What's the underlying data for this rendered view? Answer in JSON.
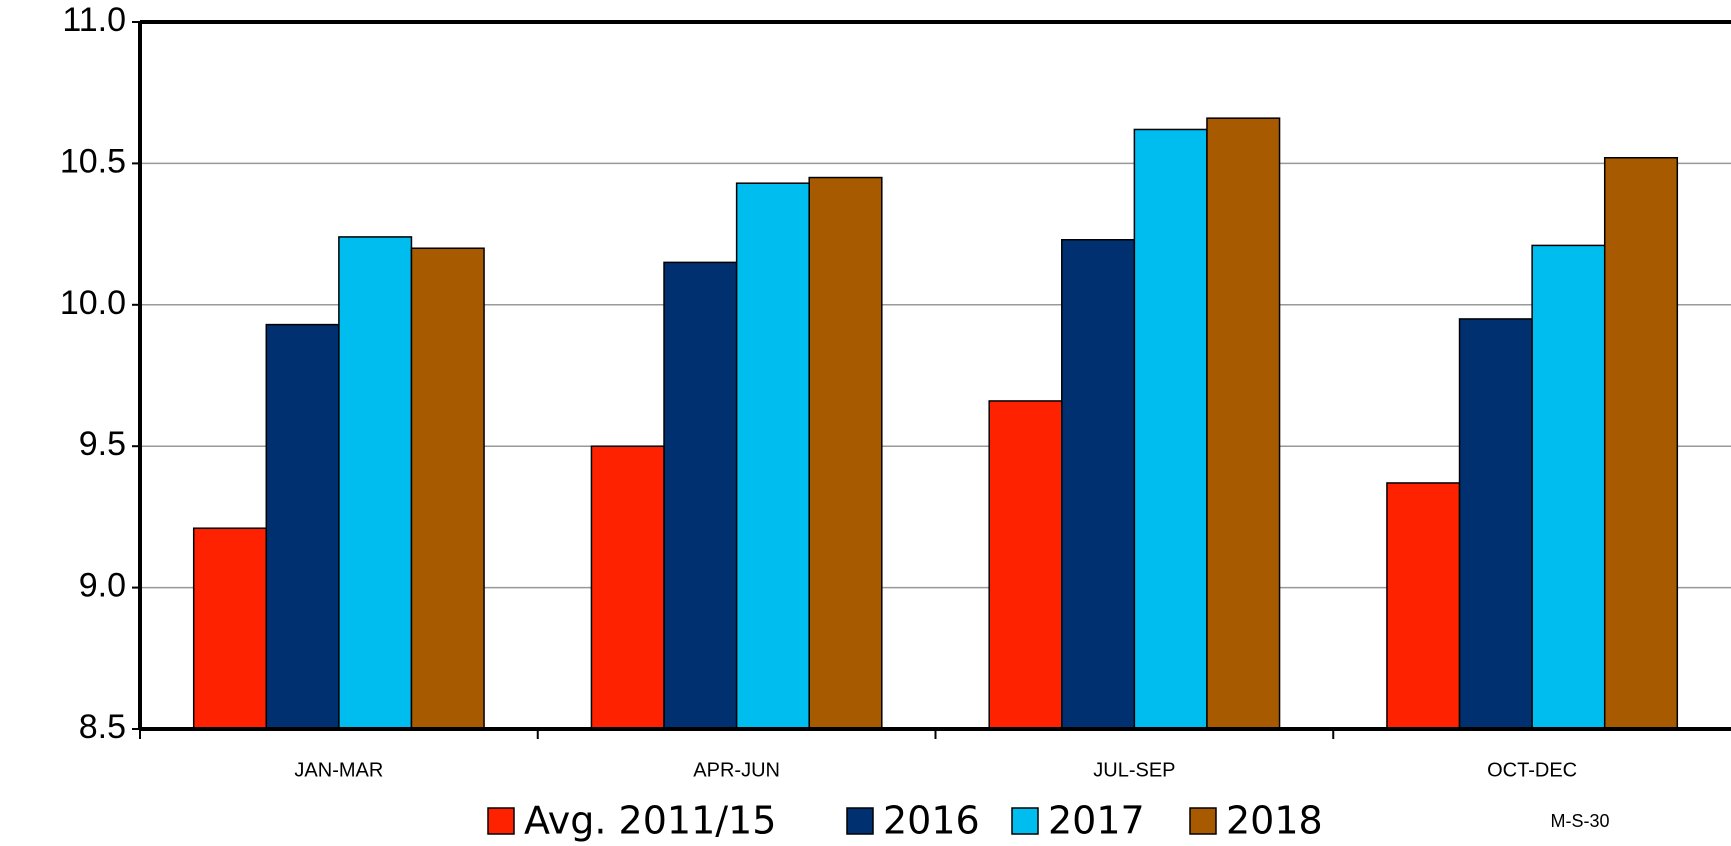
{
  "chart_data": {
    "type": "bar",
    "categories": [
      "JAN-MAR",
      "APR-JUN",
      "JUL-SEP",
      "OCT-DEC"
    ],
    "series": [
      {
        "name": "Avg. 2011/15",
        "color": "#ff2200",
        "values": [
          9.21,
          9.5,
          9.66,
          9.37
        ]
      },
      {
        "name": "2016",
        "color": "#003070",
        "values": [
          9.93,
          10.15,
          10.23,
          9.95
        ]
      },
      {
        "name": "2017",
        "color": "#00bdf0",
        "values": [
          10.24,
          10.43,
          10.62,
          10.21
        ]
      },
      {
        "name": "2018",
        "color": "#a85a00",
        "values": [
          10.2,
          10.45,
          10.66,
          10.52
        ]
      }
    ],
    "ylim": [
      8.5,
      11.0
    ],
    "yticks": [
      {
        "value": 8.5,
        "label": "8.5"
      },
      {
        "value": 9.0,
        "label": "9.0"
      },
      {
        "value": 9.5,
        "label": "9.5"
      },
      {
        "value": 10.0,
        "label": "10.0"
      },
      {
        "value": 10.5,
        "label": "10.5"
      },
      {
        "value": 11.0,
        "label": "11.0"
      }
    ],
    "grid": true,
    "legend": "bottom",
    "note": "M-S-30"
  }
}
